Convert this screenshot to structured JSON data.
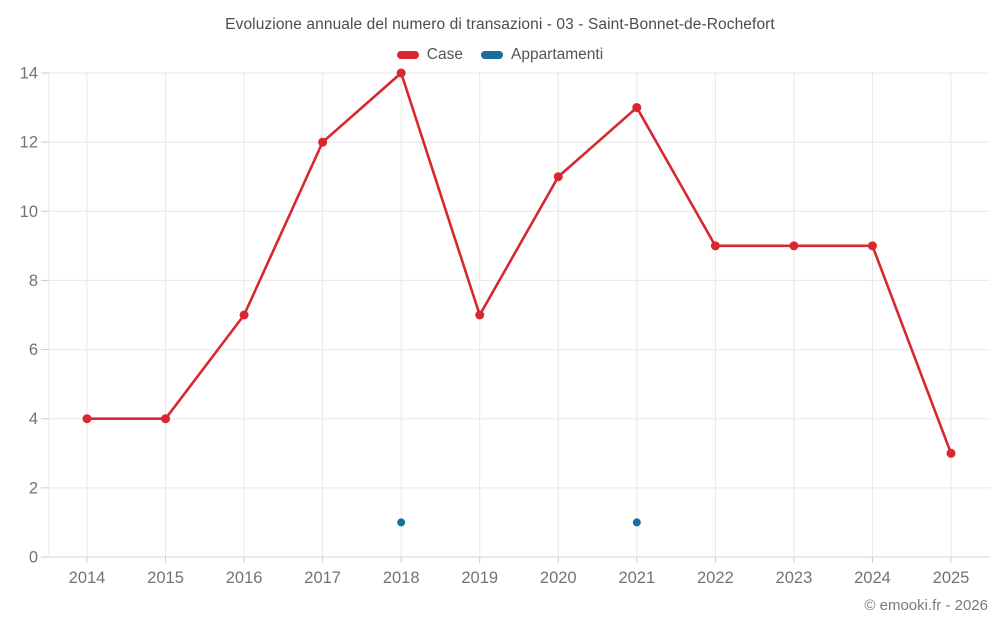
{
  "chart_data": {
    "type": "line",
    "title": "Evoluzione annuale del numero di transazioni - 03 - Saint-Bonnet-de-Rochefort",
    "categories": [
      "2014",
      "2015",
      "2016",
      "2017",
      "2018",
      "2019",
      "2020",
      "2021",
      "2022",
      "2023",
      "2024",
      "2025"
    ],
    "series": [
      {
        "name": "Case",
        "color": "#d7282f",
        "style": "line+markers",
        "values": [
          4,
          4,
          7,
          12,
          14,
          7,
          11,
          13,
          9,
          9,
          9,
          3
        ]
      },
      {
        "name": "Appartamenti",
        "color": "#1a6e9e",
        "style": "markers",
        "values": [
          null,
          null,
          null,
          null,
          1,
          null,
          null,
          1,
          null,
          null,
          null,
          null
        ]
      }
    ],
    "xlabel": "",
    "ylabel": "",
    "ylim": [
      0,
      14
    ],
    "yticks": [
      0,
      2,
      4,
      6,
      8,
      10,
      12,
      14
    ],
    "grid": true,
    "legend_position": "top"
  },
  "styles": {
    "grid_color": "#e8e8e8",
    "axis_line_color": "#d6d6d6",
    "tick_color": "#cccccc",
    "tick_label_color": "#737373",
    "background": "#ffffff"
  },
  "footer": {
    "copyright": "© emooki.fr - 2026"
  }
}
